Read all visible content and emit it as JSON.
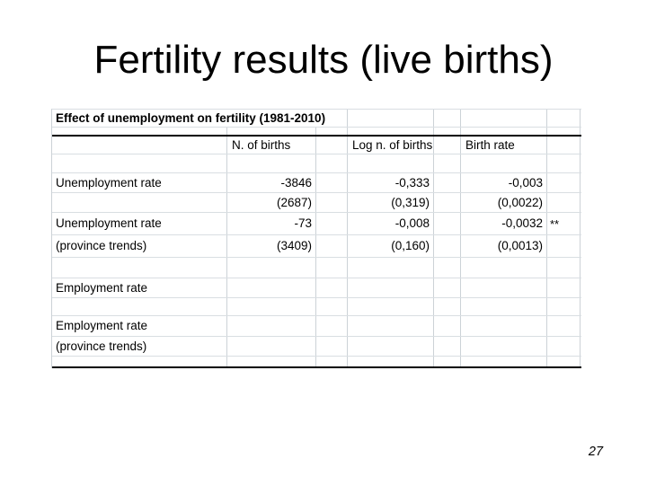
{
  "slide": {
    "title": "Fertility results (live births)",
    "page_number": "27"
  },
  "table": {
    "caption": "Effect of unemployment on fertility (1981-2010)",
    "headers": [
      "N. of births",
      "Log n. of births",
      "Birth rate"
    ],
    "rows": [
      {
        "label": "Unemployment rate",
        "sublabel": "",
        "estimates": [
          "-3846",
          "-0,333",
          "-0,003"
        ],
        "std_errors": [
          "(2687)",
          "(0,319)",
          "(0,0022)"
        ],
        "significance": ""
      },
      {
        "label": "Unemployment rate",
        "sublabel": "(province trends)",
        "estimates": [
          "-73",
          "-0,008",
          "-0,0032"
        ],
        "std_errors": [
          "(3409)",
          "(0,160)",
          "(0,0013)"
        ],
        "significance": "**"
      },
      {
        "label": "Employment rate",
        "sublabel": "",
        "estimates": [
          "",
          "",
          ""
        ],
        "std_errors": [
          "",
          "",
          ""
        ],
        "significance": ""
      },
      {
        "label": "Employment rate",
        "sublabel": "(province trends)",
        "estimates": [
          "",
          "",
          ""
        ],
        "std_errors": [
          "",
          "",
          ""
        ],
        "significance": ""
      }
    ]
  },
  "colors": {
    "background": "#ffffff",
    "gridline": "#ccd2d7",
    "rule": "#000000",
    "text": "#000000"
  }
}
